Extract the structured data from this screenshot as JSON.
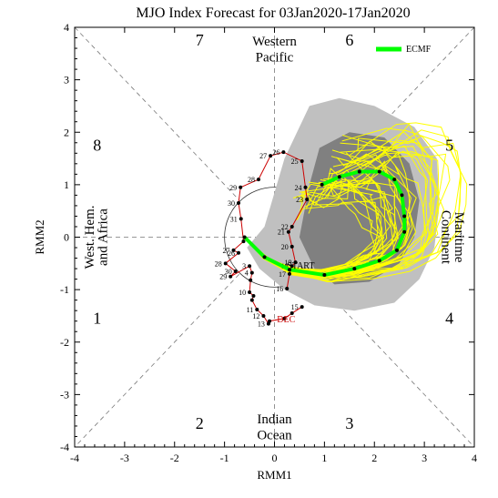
{
  "chart_data": {
    "type": "line",
    "title": "MJO Index Forecast for 03Jan2020-17Jan2020",
    "xlabel": "RMM1",
    "ylabel": "RMM2",
    "xlim": [
      -4,
      4
    ],
    "ylim": [
      -4,
      4
    ],
    "xticks": [
      "-4",
      "-3",
      "-2",
      "-1",
      "0",
      "1",
      "2",
      "3",
      "4"
    ],
    "yticks": [
      "-4",
      "-3",
      "-2",
      "-1",
      "0",
      "1",
      "2",
      "3",
      "4"
    ],
    "phase_labels": [
      "1",
      "2",
      "3",
      "4",
      "5",
      "6",
      "7",
      "8"
    ],
    "region_labels": {
      "top": [
        "Western",
        "Pacific"
      ],
      "bottom": [
        "Indian",
        "Ocean"
      ],
      "left": [
        "West. Hem.",
        "and Africa"
      ],
      "right": [
        "Maritime",
        "Continent"
      ]
    },
    "legend": {
      "label": "ECMF",
      "color": "#00ff00",
      "placement": "top-right"
    },
    "markers": {
      "dec": "DEC",
      "start": "START"
    },
    "colors": {
      "observed": "#cc0000",
      "forecast": "#00ff00",
      "ensemble": "#ffff00",
      "spread_outer": "#c0c0c0",
      "spread_inner": "#808080"
    },
    "observed": [
      {
        "label": "15",
        "x": 0.55,
        "y": -1.33
      },
      {
        "label": "",
        "x": 0.35,
        "y": -1.45
      },
      {
        "label": "",
        "x": 0.2,
        "y": -1.55
      },
      {
        "label": "",
        "x": -0.1,
        "y": -1.6
      },
      {
        "label": "13",
        "x": -0.12,
        "y": -1.65
      },
      {
        "label": "12",
        "x": -0.22,
        "y": -1.5
      },
      {
        "label": "11",
        "x": -0.35,
        "y": -1.38
      },
      {
        "label": "",
        "x": -0.45,
        "y": -1.2
      },
      {
        "label": "",
        "x": -0.42,
        "y": -1.12
      },
      {
        "label": "10",
        "x": -0.5,
        "y": -1.05
      },
      {
        "label": "",
        "x": -0.48,
        "y": -0.82
      },
      {
        "label": "4",
        "x": -0.45,
        "y": -0.68
      },
      {
        "label": "3",
        "x": -0.5,
        "y": -0.55
      },
      {
        "label": "29",
        "x": -0.88,
        "y": -0.75
      },
      {
        "label": "30",
        "x": -0.78,
        "y": -0.65
      },
      {
        "label": "28",
        "x": -0.98,
        "y": -0.5
      },
      {
        "label": "26",
        "x": -0.72,
        "y": -0.3
      },
      {
        "label": "27",
        "x": -0.82,
        "y": -0.25
      },
      {
        "label": "",
        "x": -0.62,
        "y": -0.08
      },
      {
        "label": "31",
        "x": -0.67,
        "y": 0.35
      },
      {
        "label": "30",
        "x": -0.72,
        "y": 0.65
      },
      {
        "label": "29",
        "x": -0.68,
        "y": 0.95
      },
      {
        "label": "28",
        "x": -0.32,
        "y": 1.1
      },
      {
        "label": "27",
        "x": -0.08,
        "y": 1.55
      },
      {
        "label": "26",
        "x": 0.18,
        "y": 1.62
      },
      {
        "label": "25",
        "x": 0.55,
        "y": 1.45
      },
      {
        "label": "24",
        "x": 0.62,
        "y": 0.95
      },
      {
        "label": "23",
        "x": 0.65,
        "y": 0.72
      },
      {
        "label": "22",
        "x": 0.35,
        "y": 0.2
      },
      {
        "label": "21",
        "x": 0.28,
        "y": 0.1
      },
      {
        "label": "20",
        "x": 0.35,
        "y": -0.18
      },
      {
        "label": "19",
        "x": 0.42,
        "y": -0.48
      },
      {
        "label": "18",
        "x": 0.35,
        "y": -0.55
      },
      {
        "label": "17",
        "x": 0.3,
        "y": -0.7
      },
      {
        "label": "16",
        "x": 0.25,
        "y": -0.98
      }
    ],
    "forecast": [
      {
        "x": -0.6,
        "y": 0.0
      },
      {
        "x": -0.2,
        "y": -0.38
      },
      {
        "x": 0.3,
        "y": -0.62
      },
      {
        "x": 1.0,
        "y": -0.72
      },
      {
        "x": 1.6,
        "y": -0.6
      },
      {
        "x": 2.1,
        "y": -0.45
      },
      {
        "x": 2.45,
        "y": -0.25
      },
      {
        "x": 2.6,
        "y": 0.1
      },
      {
        "x": 2.6,
        "y": 0.4
      },
      {
        "x": 2.55,
        "y": 0.8
      },
      {
        "x": 2.4,
        "y": 1.1
      },
      {
        "x": 2.1,
        "y": 1.25
      },
      {
        "x": 1.7,
        "y": 1.25
      },
      {
        "x": 1.3,
        "y": 1.15
      },
      {
        "x": 0.95,
        "y": 1.0
      }
    ]
  }
}
